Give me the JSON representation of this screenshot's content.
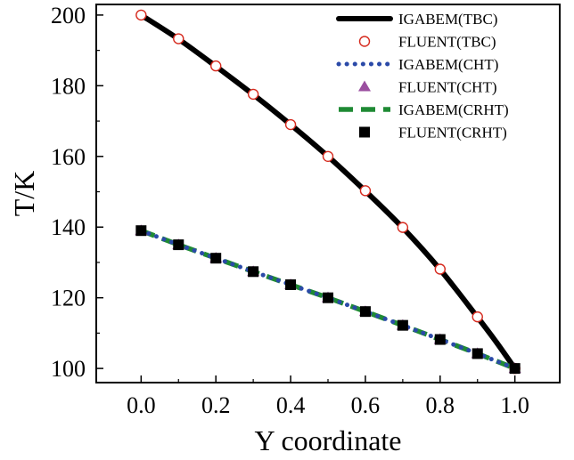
{
  "chart_data": {
    "type": "line",
    "xlabel": "Y coordinate",
    "ylabel": "T/K",
    "xlim": [
      -0.12,
      1.12
    ],
    "ylim": [
      96,
      203
    ],
    "xticks": [
      0.0,
      0.2,
      0.4,
      0.6,
      0.8,
      1.0
    ],
    "xtick_labels": [
      "0.0",
      "0.2",
      "0.4",
      "0.6",
      "0.8",
      "1.0"
    ],
    "yticks": [
      100,
      120,
      140,
      160,
      180,
      200
    ],
    "ytick_labels": [
      "100",
      "120",
      "140",
      "160",
      "180",
      "200"
    ],
    "grid": false,
    "legend_position": "top-right",
    "series": [
      {
        "name": "IGABEM(TBC)",
        "style": "solid-line",
        "color": "#000000",
        "x": [
          0.0,
          0.1,
          0.2,
          0.3,
          0.4,
          0.5,
          0.6,
          0.7,
          0.8,
          0.9,
          0.95,
          1.0
        ],
        "y": [
          200,
          193.2,
          185.5,
          177.5,
          169.0,
          160.0,
          150.2,
          139.8,
          128.0,
          114.5,
          107.5,
          100
        ]
      },
      {
        "name": "FLUENT(TBC)",
        "style": "open-circle",
        "color": "#d62a1e",
        "x": [
          0.0,
          0.1,
          0.2,
          0.3,
          0.4,
          0.5,
          0.6,
          0.7,
          0.8,
          0.9,
          1.0
        ],
        "y": [
          200,
          193.3,
          185.6,
          177.6,
          169.0,
          160.0,
          150.3,
          139.9,
          128.1,
          114.6,
          100
        ]
      },
      {
        "name": "IGABEM(CHT)",
        "style": "dotted-line",
        "color": "#2b4aa8",
        "x": [
          0.0,
          0.1,
          0.2,
          0.3,
          0.4,
          0.5,
          0.6,
          0.7,
          0.8,
          0.9,
          1.0
        ],
        "y": [
          139,
          135,
          131.2,
          127.4,
          123.7,
          120.0,
          116.1,
          112.2,
          108.2,
          104.2,
          100
        ]
      },
      {
        "name": "FLUENT(CHT)",
        "style": "triangle",
        "color": "#9b4fa0",
        "x": [
          0.0,
          0.1,
          0.2,
          0.3,
          0.4,
          0.5,
          0.6,
          0.7,
          0.8,
          0.9,
          1.0
        ],
        "y": [
          139,
          135,
          131.2,
          127.4,
          123.7,
          120.0,
          116.1,
          112.2,
          108.2,
          104.2,
          100
        ]
      },
      {
        "name": "IGABEM(CRHT)",
        "style": "dashed-line",
        "color": "#1f8a34",
        "x": [
          0.0,
          0.1,
          0.2,
          0.3,
          0.4,
          0.5,
          0.6,
          0.7,
          0.8,
          0.9,
          1.0
        ],
        "y": [
          139,
          135,
          131.2,
          127.4,
          123.7,
          120.0,
          116.1,
          112.2,
          108.2,
          104.2,
          100
        ]
      },
      {
        "name": "FLUENT(CRHT)",
        "style": "filled-square",
        "color": "#000000",
        "x": [
          0.0,
          0.1,
          0.2,
          0.3,
          0.4,
          0.5,
          0.6,
          0.7,
          0.8,
          0.9,
          1.0
        ],
        "y": [
          139,
          135,
          131.2,
          127.4,
          123.7,
          120.0,
          116.1,
          112.2,
          108.2,
          104.2,
          100
        ]
      }
    ]
  }
}
